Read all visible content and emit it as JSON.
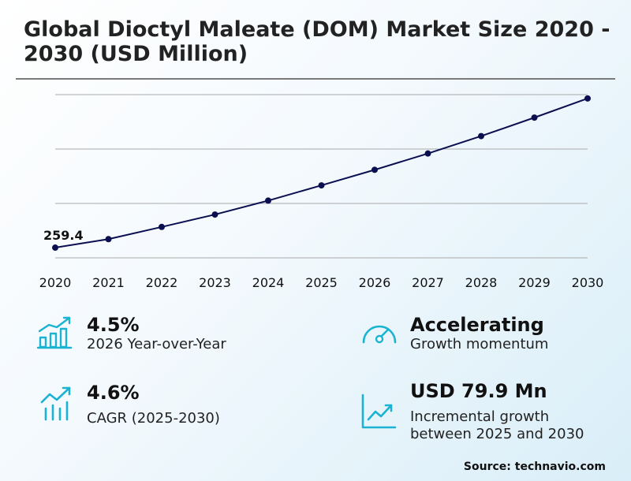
{
  "title": "Global Dioctyl Maleate (DOM) Market Size 2020 - 2030 (USD Million)",
  "chart_data": {
    "type": "line",
    "x": [
      "2020",
      "2021",
      "2022",
      "2023",
      "2024",
      "2025",
      "2026",
      "2027",
      "2028",
      "2029",
      "2030"
    ],
    "series": [
      {
        "values": [
          259.4,
          267.2,
          278.4,
          289.8,
          302.6,
          316.6,
          330.9,
          345.9,
          361.9,
          378.9,
          396.5
        ]
      }
    ],
    "data_labels": [
      {
        "index": 0,
        "text": "259.4"
      }
    ],
    "ylim": [
      250,
      400
    ],
    "grid": true,
    "line_color": "#0b0f4f"
  },
  "stats": {
    "yoy": {
      "value": "4.5%",
      "label": "2026 Year-over-Year",
      "icon": "bar-growth-icon"
    },
    "momentum": {
      "value": "Accelerating",
      "label": "Growth momentum",
      "icon": "speedometer-icon"
    },
    "cagr": {
      "value": "4.6%",
      "label": "CAGR (2025-2030)",
      "icon": "trend-bars-icon"
    },
    "incremental": {
      "value": "USD 79.9 Mn",
      "label_line1": "Incremental growth",
      "label_line2": "between 2025 and 2030",
      "icon": "line-chart-icon"
    }
  },
  "accent_color": "#1ab3d1",
  "source": "Source: technavio.com"
}
